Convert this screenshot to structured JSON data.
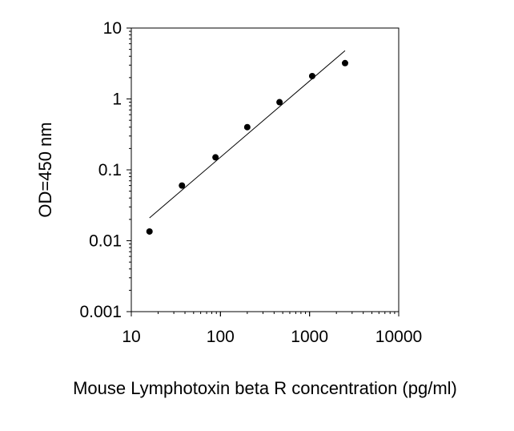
{
  "chart_data": {
    "type": "scatter",
    "title": "",
    "xlabel": "Mouse Lymphotoxin beta R concentration (pg/ml)",
    "ylabel": "OD=450 nm",
    "xscale": "log",
    "yscale": "log",
    "xlim": [
      10,
      10000
    ],
    "ylim": [
      0.001,
      10
    ],
    "x_ticks": [
      {
        "value": 10,
        "label": "10"
      },
      {
        "value": 100,
        "label": "100"
      },
      {
        "value": 1000,
        "label": "1000"
      },
      {
        "value": 10000,
        "label": "10000"
      }
    ],
    "y_ticks": [
      {
        "value": 0.001,
        "label": "0.001"
      },
      {
        "value": 0.01,
        "label": "0.01"
      },
      {
        "value": 0.1,
        "label": "0.1"
      },
      {
        "value": 1,
        "label": "1"
      },
      {
        "value": 10,
        "label": "10"
      }
    ],
    "grid": false,
    "legend": "none",
    "series": [
      {
        "points": [
          {
            "x": 16,
            "y": 0.0135
          },
          {
            "x": 37,
            "y": 0.06
          },
          {
            "x": 88,
            "y": 0.15
          },
          {
            "x": 200,
            "y": 0.4
          },
          {
            "x": 460,
            "y": 0.9
          },
          {
            "x": 1070,
            "y": 2.1
          },
          {
            "x": 2500,
            "y": 3.2
          }
        ],
        "color": "#000000"
      }
    ],
    "fit_line": {
      "type": "linear-log-log",
      "from": {
        "x": 16,
        "y": 0.021
      },
      "to": {
        "x": 2500,
        "y": 4.8
      },
      "color": "#000000"
    }
  }
}
